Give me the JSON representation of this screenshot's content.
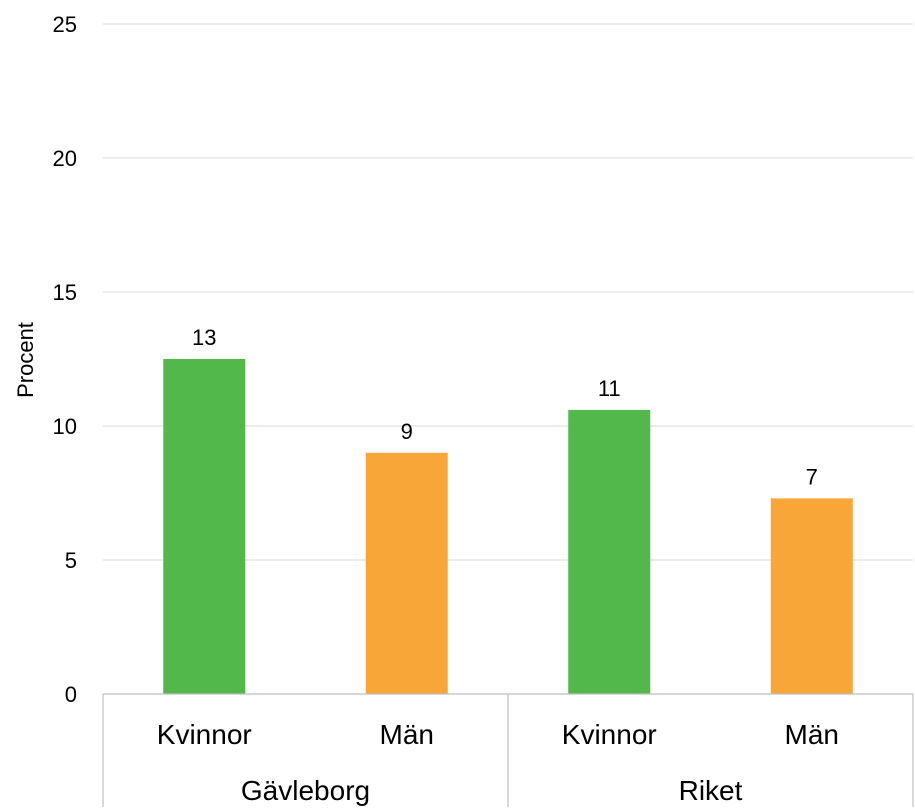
{
  "chart_data": {
    "type": "bar",
    "ylabel": "Procent",
    "ylim": [
      0,
      25
    ],
    "yticks": [
      0,
      5,
      10,
      15,
      20,
      25
    ],
    "grid": true,
    "categories": [
      "Kvinnor",
      "Män",
      "Kvinnor",
      "Män"
    ],
    "groups": [
      "Gävleborg",
      "Riket"
    ],
    "group_sizes": [
      2,
      2
    ],
    "values": [
      12.5,
      9.0,
      10.6,
      7.3
    ],
    "data_labels": [
      "13",
      "9",
      "11",
      "7"
    ],
    "bar_colors": [
      "#52b84b",
      "#f8a637",
      "#52b84b",
      "#f8a637"
    ]
  },
  "colors": {
    "gridline": "#d9d9d9",
    "axis": "#bfbfbf",
    "text": "#000000"
  }
}
